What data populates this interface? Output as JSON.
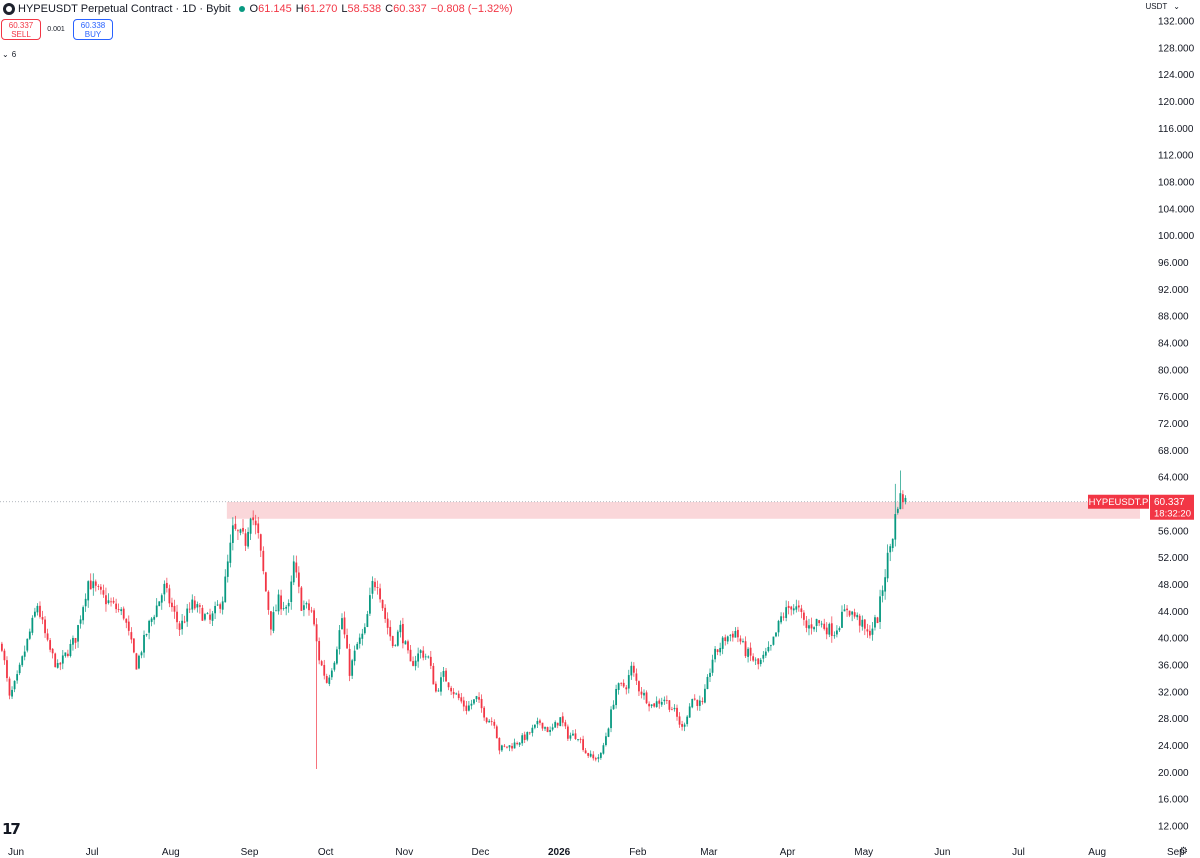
{
  "header": {
    "symbol_title": "HYPEUSDT Perpetual Contract · 1D · Bybit",
    "ohlc": [
      {
        "key": "O",
        "value": "61.145"
      },
      {
        "key": "H",
        "value": "61.270"
      },
      {
        "key": "L",
        "value": "58.538"
      },
      {
        "key": "C",
        "value": "60.337"
      }
    ],
    "change": "−0.808 (−1.32%)"
  },
  "trade": {
    "sell_price": "60.337",
    "sell_label": "SELL",
    "spread": "0.001",
    "buy_price": "60.338",
    "buy_label": "BUY"
  },
  "indicators_toggle": "6",
  "currency": "USDT",
  "last_price_label": {
    "symbol": "HYPEUSDT.P",
    "price": "60.337",
    "countdown": "18:32:20"
  },
  "colors": {
    "up": "#089981",
    "down": "#f23645",
    "zone": "#f8c9cd",
    "label_bg": "#f23645"
  },
  "icons": {
    "symbol": "symbol-logo-icon",
    "live": "live-dot-icon",
    "chevron": "chevron-down-icon",
    "brand": "tradingview-logo-icon",
    "settings": "gear-icon"
  },
  "logo_text": "17",
  "chart_data": {
    "type": "candlestick",
    "yaxis_ticks": [
      "12.000",
      "16.000",
      "20.000",
      "24.000",
      "28.000",
      "32.000",
      "36.000",
      "40.000",
      "44.000",
      "48.000",
      "52.000",
      "56.000",
      "64.000",
      "68.000",
      "72.000",
      "76.000",
      "80.000",
      "84.000",
      "88.000",
      "92.000",
      "96.000",
      "100.000",
      "104.000",
      "108.000",
      "112.000",
      "116.000",
      "120.000",
      "124.000",
      "128.000",
      "132.000"
    ],
    "ylim": [
      12,
      132
    ],
    "xaxis_ticks": [
      {
        "label": "Jun",
        "day": 0
      },
      {
        "label": "Jul",
        "day": 30
      },
      {
        "label": "Aug",
        "day": 61
      },
      {
        "label": "Sep",
        "day": 92
      },
      {
        "label": "Oct",
        "day": 122
      },
      {
        "label": "Nov",
        "day": 153
      },
      {
        "label": "Dec",
        "day": 183
      },
      {
        "label": "2026",
        "day": 214,
        "bold": true
      },
      {
        "label": "Feb",
        "day": 245
      },
      {
        "label": "Mar",
        "day": 273
      },
      {
        "label": "Apr",
        "day": 304
      },
      {
        "label": "May",
        "day": 334
      },
      {
        "label": "Jun",
        "day": 365
      },
      {
        "label": "Jul",
        "day": 395
      },
      {
        "label": "Aug",
        "day": 426
      },
      {
        "label": "Sep",
        "day": 457
      }
    ],
    "last_price": 60.337,
    "resistance_zone": {
      "from_day": 89,
      "low": 57.8,
      "high": 60.3
    },
    "price_path": [
      [
        0,
        39.0
      ],
      [
        3,
        31.0
      ],
      [
        6,
        34.0
      ],
      [
        14,
        45.0
      ],
      [
        18,
        39.0
      ],
      [
        22,
        35.5
      ],
      [
        29,
        40.0
      ],
      [
        34,
        48.5
      ],
      [
        40,
        46.0
      ],
      [
        48,
        43.5
      ],
      [
        53,
        36.0
      ],
      [
        58,
        42.0
      ],
      [
        64,
        47.5
      ],
      [
        70,
        41.5
      ],
      [
        75,
        45.0
      ],
      [
        82,
        42.5
      ],
      [
        87,
        46.0
      ],
      [
        91,
        56.0
      ],
      [
        96,
        54.5
      ],
      [
        98,
        59.0
      ],
      [
        101,
        55.0
      ],
      [
        104,
        47.0
      ],
      [
        106,
        42.0
      ],
      [
        109,
        45.5
      ],
      [
        113,
        44.5
      ],
      [
        115,
        51.0
      ],
      [
        118,
        45.0
      ],
      [
        122,
        44.0
      ],
      [
        125,
        37.0
      ],
      [
        128,
        33.5
      ],
      [
        131,
        37.0
      ],
      [
        134,
        43.0
      ],
      [
        137,
        35.0
      ],
      [
        140,
        39.0
      ],
      [
        143,
        41.0
      ],
      [
        146,
        48.0
      ],
      [
        148,
        48.5
      ],
      [
        151,
        43.0
      ],
      [
        154,
        39.0
      ],
      [
        157,
        41.5
      ],
      [
        161,
        36.0
      ],
      [
        165,
        38.0
      ],
      [
        168,
        37.0
      ],
      [
        171,
        32.0
      ],
      [
        174,
        34.5
      ],
      [
        178,
        32.0
      ],
      [
        183,
        29.5
      ],
      [
        187,
        31.0
      ],
      [
        191,
        28.0
      ],
      [
        194,
        27.5
      ],
      [
        196,
        23.5
      ],
      [
        201,
        24.0
      ],
      [
        207,
        25.5
      ],
      [
        212,
        27.5
      ],
      [
        216,
        26.0
      ],
      [
        220,
        28.0
      ],
      [
        223,
        25.5
      ],
      [
        227,
        25.5
      ],
      [
        230,
        23.0
      ],
      [
        233,
        22.0
      ],
      [
        236,
        22.5
      ],
      [
        239,
        27.0
      ],
      [
        242,
        32.5
      ],
      [
        246,
        33.0
      ],
      [
        248,
        35.5
      ],
      [
        251,
        32.5
      ],
      [
        256,
        30.0
      ],
      [
        261,
        31.0
      ],
      [
        265,
        29.0
      ],
      [
        268,
        26.5
      ],
      [
        272,
        31.0
      ],
      [
        276,
        30.0
      ],
      [
        280,
        37.0
      ],
      [
        285,
        40.0
      ],
      [
        289,
        41.0
      ],
      [
        293,
        38.0
      ],
      [
        298,
        36.0
      ],
      [
        303,
        38.5
      ],
      [
        307,
        43.0
      ],
      [
        311,
        45.0
      ],
      [
        314,
        44.0
      ],
      [
        317,
        41.5
      ],
      [
        321,
        42.5
      ],
      [
        325,
        41.5
      ],
      [
        328,
        41.0
      ],
      [
        333,
        44.5
      ],
      [
        338,
        42.5
      ],
      [
        341,
        40.5
      ],
      [
        345,
        43.0
      ],
      [
        349,
        52.0
      ],
      [
        351,
        55.5
      ],
      [
        353,
        60.5
      ],
      [
        355,
        61.0
      ],
      [
        356,
        60.3
      ]
    ],
    "special_wicks": [
      {
        "day": 124,
        "low": 20.5
      },
      {
        "day": 354,
        "high": 65.0
      },
      {
        "day": 352,
        "high": 63.0
      }
    ]
  }
}
